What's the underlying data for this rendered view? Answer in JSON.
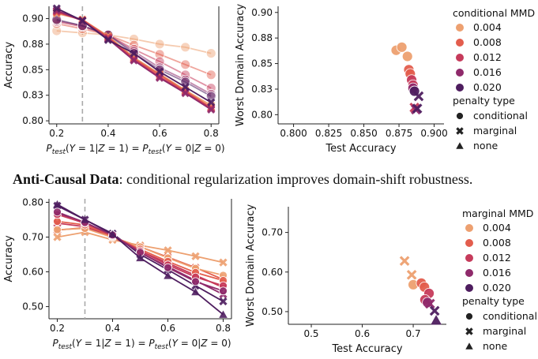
{
  "caption": {
    "bold": "Anti-Causal Data",
    "rest": ": conditional regularization improves domain-shift robustness."
  },
  "colors": {
    "0.004": "#eda070",
    "0.008": "#e35d4d",
    "0.012": "#c63b5b",
    "0.016": "#8f2a6b",
    "0.020": "#4e1d5f"
  },
  "chart_data": [
    {
      "id": "top-left",
      "type": "line",
      "xlabel": "P_test(Y = 1|Z = 1) = P_test(Y = 0|Z = 0)",
      "ylabel": "Accuracy",
      "xlim": [
        0.17,
        0.83
      ],
      "ylim": [
        0.797,
        0.912
      ],
      "xticks": [
        0.2,
        0.4,
        0.6,
        0.8
      ],
      "yticks": [
        0.8,
        0.825,
        0.85,
        0.875,
        0.9
      ],
      "ytick_labels": [
        "0.80",
        "0.83",
        "0.85",
        "0.88",
        "0.90"
      ],
      "vline": 0.3,
      "x": [
        0.2,
        0.3,
        0.4,
        0.5,
        0.6,
        0.7,
        0.8
      ],
      "series": [
        {
          "mmd": "0.004",
          "penalty": "conditional",
          "values": [
            0.888,
            0.886,
            0.884,
            0.88,
            0.875,
            0.872,
            0.866
          ]
        },
        {
          "mmd": "0.008",
          "penalty": "conditional",
          "values": [
            0.895,
            0.89,
            0.884,
            0.874,
            0.865,
            0.855,
            0.845
          ]
        },
        {
          "mmd": "0.012",
          "penalty": "conditional",
          "values": [
            0.897,
            0.892,
            0.884,
            0.87,
            0.858,
            0.845,
            0.832
          ]
        },
        {
          "mmd": "0.016",
          "penalty": "conditional",
          "values": [
            0.898,
            0.893,
            0.884,
            0.868,
            0.852,
            0.84,
            0.826
          ]
        },
        {
          "mmd": "0.020",
          "penalty": "conditional",
          "values": [
            0.899,
            0.893,
            0.884,
            0.866,
            0.85,
            0.838,
            0.824
          ]
        },
        {
          "mmd": "0.004",
          "penalty": "marginal",
          "values": [
            0.905,
            0.899,
            0.883,
            0.862,
            0.846,
            0.83,
            0.815
          ]
        },
        {
          "mmd": "0.008",
          "penalty": "marginal",
          "values": [
            0.906,
            0.899,
            0.882,
            0.861,
            0.845,
            0.829,
            0.813
          ]
        },
        {
          "mmd": "0.012",
          "penalty": "marginal",
          "values": [
            0.907,
            0.898,
            0.881,
            0.86,
            0.843,
            0.828,
            0.812
          ]
        },
        {
          "mmd": "0.016",
          "penalty": "marginal",
          "values": [
            0.908,
            0.898,
            0.88,
            0.859,
            0.842,
            0.827,
            0.811
          ]
        },
        {
          "mmd": "0.020",
          "penalty": "marginal",
          "values": [
            0.91,
            0.898,
            0.879,
            0.866,
            0.848,
            0.833,
            0.818
          ]
        }
      ]
    },
    {
      "id": "top-right",
      "type": "scatter",
      "xlabel": "Test Accuracy",
      "ylabel": "Worst Domain Accuracy",
      "xlim": [
        0.789,
        0.907
      ],
      "ylim": [
        0.791,
        0.906
      ],
      "xticks": [
        0.8,
        0.825,
        0.85,
        0.875,
        0.9
      ],
      "xtick_labels": [
        "0.800",
        "0.825",
        "0.850",
        "0.875",
        "0.900"
      ],
      "yticks": [
        0.8,
        0.825,
        0.85,
        0.875,
        0.9
      ],
      "ytick_labels": [
        "0.80",
        "0.83",
        "0.85",
        "0.88",
        "0.90"
      ],
      "points": [
        {
          "mmd": "0.004",
          "penalty": "conditional",
          "x": 0.873,
          "y": 0.863
        },
        {
          "mmd": "0.004",
          "penalty": "conditional",
          "x": 0.877,
          "y": 0.866
        },
        {
          "mmd": "0.004",
          "penalty": "conditional",
          "x": 0.881,
          "y": 0.857
        },
        {
          "mmd": "0.008",
          "penalty": "conditional",
          "x": 0.882,
          "y": 0.844
        },
        {
          "mmd": "0.008",
          "penalty": "conditional",
          "x": 0.883,
          "y": 0.84
        },
        {
          "mmd": "0.012",
          "penalty": "conditional",
          "x": 0.884,
          "y": 0.834
        },
        {
          "mmd": "0.012",
          "penalty": "conditional",
          "x": 0.885,
          "y": 0.829
        },
        {
          "mmd": "0.016",
          "penalty": "conditional",
          "x": 0.885,
          "y": 0.826
        },
        {
          "mmd": "0.020",
          "penalty": "conditional",
          "x": 0.886,
          "y": 0.823
        },
        {
          "mmd": "0.012",
          "penalty": "marginal",
          "x": 0.886,
          "y": 0.807
        },
        {
          "mmd": "0.016",
          "penalty": "marginal",
          "x": 0.887,
          "y": 0.805
        },
        {
          "mmd": "0.020",
          "penalty": "marginal",
          "x": 0.888,
          "y": 0.806
        },
        {
          "mmd": "0.020",
          "penalty": "marginal",
          "x": 0.889,
          "y": 0.818
        }
      ],
      "legend": {
        "title": "conditional MMD",
        "items": [
          "0.004",
          "0.008",
          "0.012",
          "0.016",
          "0.020"
        ],
        "shape_title": "penalty type",
        "shapes": [
          "conditional",
          "marginal",
          "none"
        ]
      }
    },
    {
      "id": "bottom-left",
      "type": "line",
      "xlabel": "P_test(Y = 1|Z = 1) = P_test(Y = 0|Z = 0)",
      "ylabel": "Accuracy",
      "xlim": [
        0.17,
        0.83
      ],
      "ylim": [
        0.465,
        0.81
      ],
      "xticks": [
        0.2,
        0.4,
        0.6,
        0.8
      ],
      "yticks": [
        0.5,
        0.6,
        0.7,
        0.8
      ],
      "ytick_labels": [
        "0.50",
        "0.60",
        "0.70",
        "0.80"
      ],
      "vline": 0.3,
      "x": [
        0.2,
        0.3,
        0.4,
        0.5,
        0.6,
        0.7,
        0.8
      ],
      "series": [
        {
          "mmd": "0.004",
          "penalty": "marginal",
          "values": [
            0.7,
            0.714,
            0.692,
            0.676,
            0.662,
            0.645,
            0.627
          ]
        },
        {
          "mmd": "0.008",
          "penalty": "marginal",
          "values": [
            0.72,
            0.727,
            0.7,
            0.672,
            0.642,
            0.612,
            0.578
          ]
        },
        {
          "mmd": "0.012",
          "penalty": "marginal",
          "values": [
            0.74,
            0.73,
            0.7,
            0.66,
            0.625,
            0.59,
            0.555
          ]
        },
        {
          "mmd": "0.016",
          "penalty": "marginal",
          "values": [
            0.768,
            0.742,
            0.705,
            0.655,
            0.615,
            0.575,
            0.535
          ]
        },
        {
          "mmd": "0.020",
          "penalty": "marginal",
          "values": [
            0.79,
            0.75,
            0.71,
            0.65,
            0.606,
            0.56,
            0.515
          ]
        },
        {
          "mmd": "0.004",
          "penalty": "conditional",
          "values": [
            0.721,
            0.725,
            0.699,
            0.672,
            0.64,
            0.61,
            0.59
          ]
        },
        {
          "mmd": "0.008",
          "penalty": "conditional",
          "values": [
            0.745,
            0.735,
            0.702,
            0.665,
            0.63,
            0.598,
            0.575
          ]
        },
        {
          "mmd": "0.012",
          "penalty": "conditional",
          "values": [
            0.765,
            0.74,
            0.704,
            0.66,
            0.62,
            0.585,
            0.56
          ]
        },
        {
          "mmd": "0.016",
          "penalty": "conditional",
          "values": [
            0.772,
            0.742,
            0.706,
            0.656,
            0.612,
            0.572,
            0.545
          ]
        },
        {
          "mmd": "0.020",
          "penalty": "none",
          "values": [
            0.794,
            0.75,
            0.708,
            0.64,
            0.589,
            0.542,
            0.477
          ]
        }
      ]
    },
    {
      "id": "bottom-right",
      "type": "scatter",
      "xlabel": "Test Accuracy",
      "ylabel": "Worst Domain Accuracy",
      "xlim": [
        0.455,
        0.765
      ],
      "ylim": [
        0.468,
        0.765
      ],
      "xticks": [
        0.5,
        0.6,
        0.7
      ],
      "xtick_labels": [
        "0.5",
        "0.6",
        "0.7"
      ],
      "yticks": [
        0.5,
        0.6,
        0.7
      ],
      "ytick_labels": [
        "0.50",
        "0.60",
        "0.70"
      ],
      "points": [
        {
          "mmd": "0.004",
          "penalty": "marginal",
          "x": 0.683,
          "y": 0.628
        },
        {
          "mmd": "0.004",
          "penalty": "marginal",
          "x": 0.697,
          "y": 0.593
        },
        {
          "mmd": "0.004",
          "penalty": "conditional",
          "x": 0.7,
          "y": 0.568
        },
        {
          "mmd": "0.008",
          "penalty": "conditional",
          "x": 0.716,
          "y": 0.572
        },
        {
          "mmd": "0.008",
          "penalty": "conditional",
          "x": 0.722,
          "y": 0.562
        },
        {
          "mmd": "0.012",
          "penalty": "conditional",
          "x": 0.731,
          "y": 0.546
        },
        {
          "mmd": "0.012",
          "penalty": "conditional",
          "x": 0.723,
          "y": 0.53
        },
        {
          "mmd": "0.016",
          "penalty": "conditional",
          "x": 0.728,
          "y": 0.523
        },
        {
          "mmd": "0.016",
          "penalty": "marginal",
          "x": 0.733,
          "y": 0.52
        },
        {
          "mmd": "0.020",
          "penalty": "marginal",
          "x": 0.742,
          "y": 0.502
        },
        {
          "mmd": "0.020",
          "penalty": "none",
          "x": 0.745,
          "y": 0.478
        }
      ],
      "legend": {
        "title": "marginal MMD",
        "items": [
          "0.004",
          "0.008",
          "0.012",
          "0.016",
          "0.020"
        ],
        "shape_title": "penalty type",
        "shapes": [
          "conditional",
          "marginal",
          "none"
        ]
      }
    }
  ]
}
